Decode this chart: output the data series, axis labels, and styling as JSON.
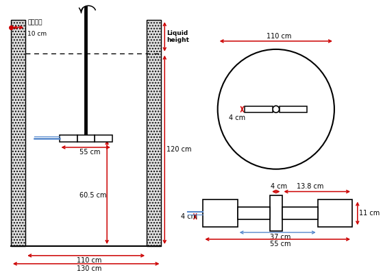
{
  "bg_color": "#ffffff",
  "line_color": "#000000",
  "red_color": "#cc0000",
  "blue_color": "#5588cc",
  "annotations": {
    "onsunhwan": "온수순환",
    "10cm_left": "10 cm",
    "liquid_height_1": "Liquid",
    "liquid_height_2": "height",
    "120cm": "120 cm",
    "55cm": "55 cm",
    "60_5cm": "60.5 cm",
    "110cm_inner": "110 cm",
    "130cm_outer": "130 cm",
    "110cm_top": "110 cm",
    "4cm_circle": "4 cm",
    "4cm_impeller": "4 cm",
    "13_8cm": "13.8 cm",
    "37cm": "37 cm",
    "55cm_imp": "55 cm",
    "11cm": "11 cm"
  }
}
